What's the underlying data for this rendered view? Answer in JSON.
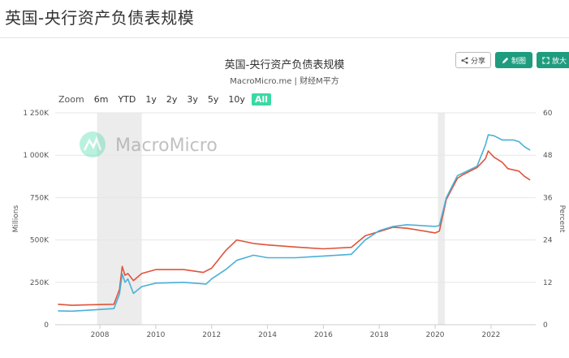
{
  "page": {
    "title": "英国-央行资产负债表规模"
  },
  "toolbar": {
    "share_label": "分享",
    "draw_label": "制图",
    "zoom_label": "放大"
  },
  "zoom": {
    "label": "Zoom",
    "options": [
      "6m",
      "YTD",
      "1y",
      "2y",
      "3y",
      "5y",
      "10y",
      "All"
    ],
    "active": "All"
  },
  "watermark": {
    "text": "MacroMicro"
  },
  "colors": {
    "blue": "#4ab0d9",
    "red": "#e0533a",
    "recession": "#ececec",
    "accent": "#1f9c7e"
  },
  "chart_data": {
    "type": "line",
    "title": "英国-央行资产负债表规模",
    "subtitle": "MacroMicro.me | 财经M平方",
    "xlabel": "",
    "ylabel": "Millions",
    "y2label": "Percent",
    "xlim": [
      2006.4,
      2023.6
    ],
    "ylim": [
      0,
      1250000
    ],
    "y2lim": [
      0,
      60
    ],
    "x_ticks": [
      "2008",
      "2010",
      "2012",
      "2014",
      "2016",
      "2018",
      "2020",
      "2022"
    ],
    "y_ticks": [
      "0",
      "250K",
      "500K",
      "750K",
      "1 000K",
      "1 250K"
    ],
    "y2_ticks": [
      "0",
      "12",
      "24",
      "36",
      "48",
      "60"
    ],
    "grid": true,
    "legend": "none",
    "shaded_periods": [
      [
        2007.9,
        2009.5
      ],
      [
        2020.1,
        2020.35
      ]
    ],
    "series": [
      {
        "axis": "right",
        "color": "#e0533a",
        "points": [
          [
            2006.5,
            5.8
          ],
          [
            2007.0,
            5.5
          ],
          [
            2007.5,
            5.6
          ],
          [
            2008.0,
            5.7
          ],
          [
            2008.5,
            5.8
          ],
          [
            2008.7,
            10.0
          ],
          [
            2008.8,
            16.5
          ],
          [
            2008.9,
            14.0
          ],
          [
            2009.0,
            14.5
          ],
          [
            2009.2,
            12.5
          ],
          [
            2009.5,
            14.5
          ],
          [
            2010.0,
            15.6
          ],
          [
            2011.0,
            15.6
          ],
          [
            2011.7,
            14.8
          ],
          [
            2012.0,
            16.0
          ],
          [
            2012.5,
            21.0
          ],
          [
            2012.9,
            24.0
          ],
          [
            2013.5,
            23.0
          ],
          [
            2014.0,
            22.6
          ],
          [
            2015.0,
            22.0
          ],
          [
            2016.0,
            21.5
          ],
          [
            2017.0,
            21.9
          ],
          [
            2017.5,
            25.2
          ],
          [
            2018.0,
            26.4
          ],
          [
            2018.5,
            27.6
          ],
          [
            2019.0,
            27.3
          ],
          [
            2020.0,
            26.0
          ],
          [
            2020.15,
            26.5
          ],
          [
            2020.4,
            35.5
          ],
          [
            2020.8,
            41.5
          ],
          [
            2021.0,
            42.5
          ],
          [
            2021.5,
            44.5
          ],
          [
            2021.8,
            47.0
          ],
          [
            2021.9,
            49.2
          ],
          [
            2022.1,
            47.5
          ],
          [
            2022.4,
            46.0
          ],
          [
            2022.6,
            44.2
          ],
          [
            2023.0,
            43.5
          ],
          [
            2023.2,
            42.0
          ],
          [
            2023.4,
            41.0
          ]
        ]
      },
      {
        "axis": "left",
        "color": "#4ab0d9",
        "points": [
          [
            2006.5,
            82000
          ],
          [
            2007.0,
            80000
          ],
          [
            2007.5,
            85000
          ],
          [
            2008.0,
            90000
          ],
          [
            2008.5,
            95000
          ],
          [
            2008.7,
            180000
          ],
          [
            2008.8,
            300000
          ],
          [
            2008.9,
            250000
          ],
          [
            2009.0,
            270000
          ],
          [
            2009.2,
            185000
          ],
          [
            2009.5,
            225000
          ],
          [
            2010.0,
            245000
          ],
          [
            2011.0,
            250000
          ],
          [
            2011.8,
            240000
          ],
          [
            2012.0,
            270000
          ],
          [
            2012.5,
            325000
          ],
          [
            2012.9,
            380000
          ],
          [
            2013.5,
            410000
          ],
          [
            2014.0,
            395000
          ],
          [
            2015.0,
            395000
          ],
          [
            2016.0,
            405000
          ],
          [
            2017.0,
            415000
          ],
          [
            2017.5,
            500000
          ],
          [
            2018.0,
            555000
          ],
          [
            2018.5,
            580000
          ],
          [
            2019.0,
            590000
          ],
          [
            2020.0,
            580000
          ],
          [
            2020.15,
            585000
          ],
          [
            2020.4,
            750000
          ],
          [
            2020.8,
            880000
          ],
          [
            2021.0,
            895000
          ],
          [
            2021.5,
            935000
          ],
          [
            2021.8,
            1060000
          ],
          [
            2021.9,
            1120000
          ],
          [
            2022.1,
            1115000
          ],
          [
            2022.4,
            1090000
          ],
          [
            2022.8,
            1090000
          ],
          [
            2023.0,
            1080000
          ],
          [
            2023.2,
            1050000
          ],
          [
            2023.4,
            1030000
          ]
        ]
      }
    ]
  }
}
